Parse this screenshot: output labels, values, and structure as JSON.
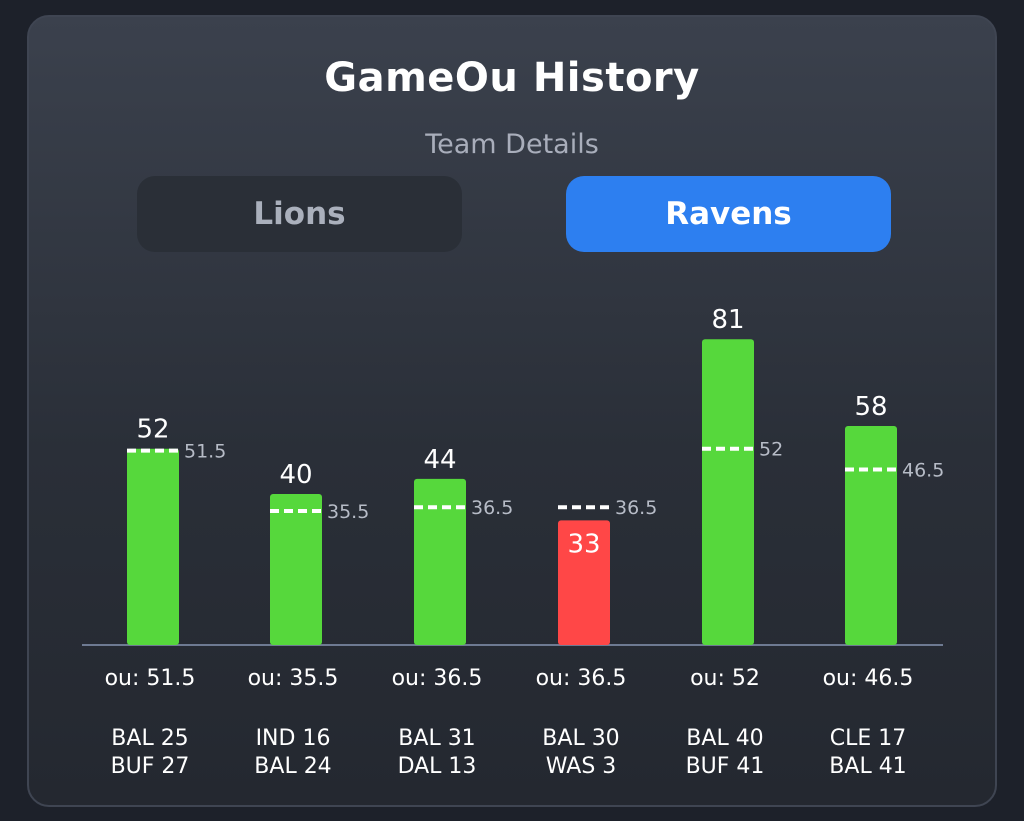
{
  "header": {
    "title": "GameOu History",
    "subtitle": "Team Details"
  },
  "tabs": [
    {
      "label": "Lions",
      "active": false
    },
    {
      "label": "Ravens",
      "active": true
    }
  ],
  "colors": {
    "over": "#56d83c",
    "under": "#ff4747",
    "active_tab": "#2d7ff0",
    "baseline": "#6e7a92"
  },
  "chart_data": {
    "type": "bar",
    "categories": [
      "BAL 25 BUF 27",
      "IND 16 BAL 24",
      "BAL 31 DAL 13",
      "BAL 30 WAS 3",
      "BAL 40 BUF 41",
      "CLE 17 BAL 41"
    ],
    "games": [
      {
        "score_line_1": "BAL 25",
        "score_line_2": "BUF 27",
        "total": 52,
        "ou": 51.5,
        "ou_label": "ou: 51.5",
        "result": "over"
      },
      {
        "score_line_1": "IND 16",
        "score_line_2": "BAL 24",
        "total": 40,
        "ou": 35.5,
        "ou_label": "ou: 35.5",
        "result": "over"
      },
      {
        "score_line_1": "BAL 31",
        "score_line_2": "DAL 13",
        "total": 44,
        "ou": 36.5,
        "ou_label": "ou: 36.5",
        "result": "over"
      },
      {
        "score_line_1": "BAL 30",
        "score_line_2": "WAS 3",
        "total": 33,
        "ou": 36.5,
        "ou_label": "ou: 36.5",
        "result": "under"
      },
      {
        "score_line_1": "BAL 40",
        "score_line_2": "BUF 41",
        "total": 81,
        "ou": 52,
        "ou_label": "ou: 52",
        "result": "over"
      },
      {
        "score_line_1": "CLE 17",
        "score_line_2": "BAL 41",
        "total": 58,
        "ou": 46.5,
        "ou_label": "ou: 46.5",
        "result": "over"
      }
    ],
    "grid": false,
    "legend": "none"
  }
}
